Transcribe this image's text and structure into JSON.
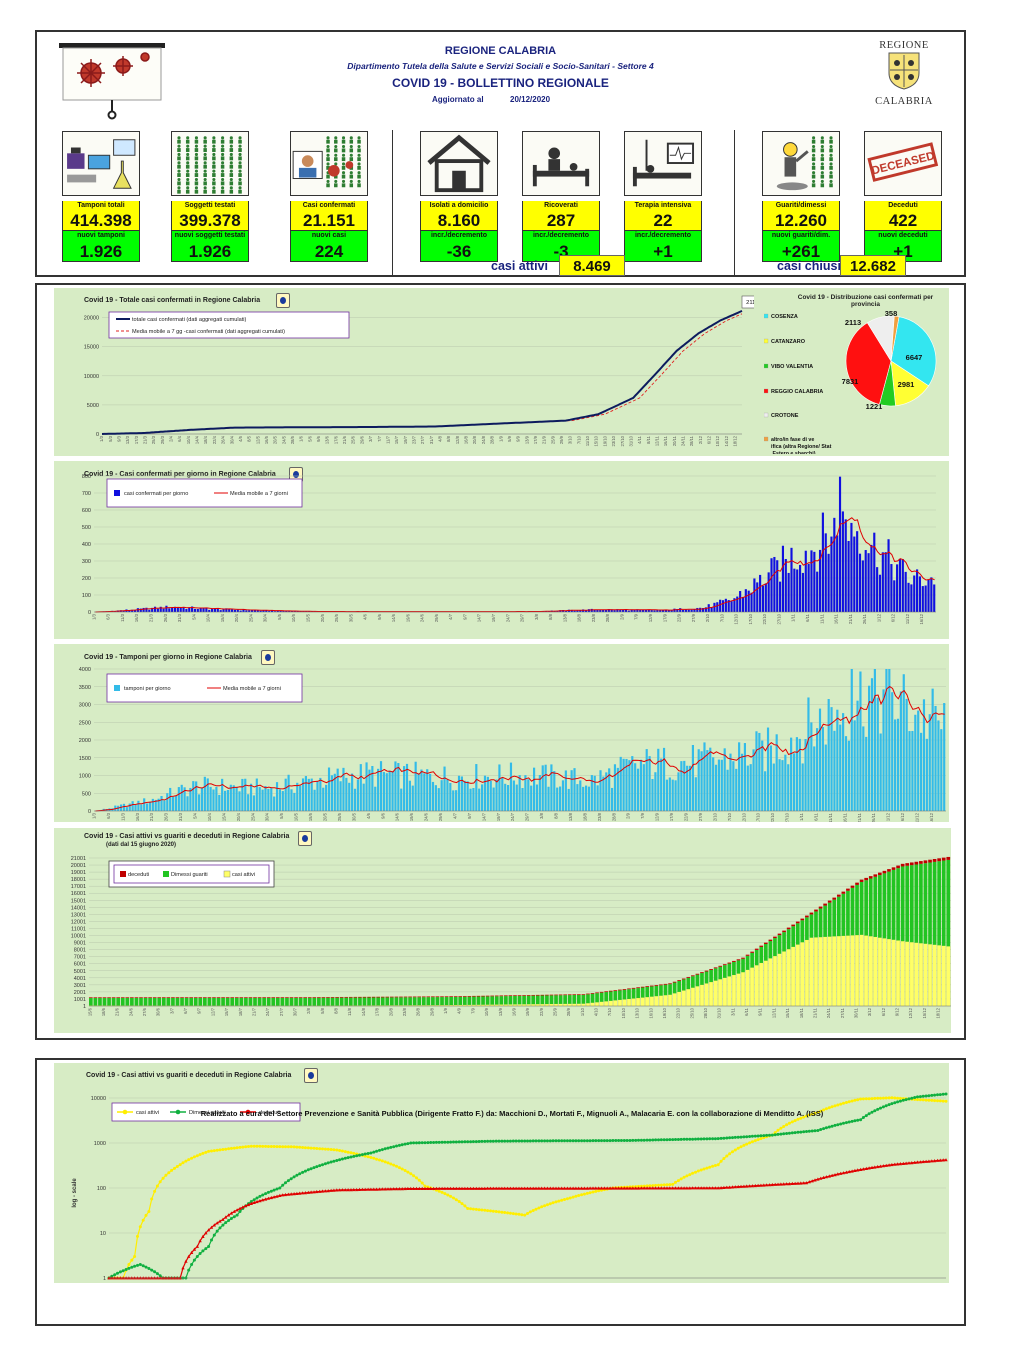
{
  "header": {
    "region": "REGIONE CALABRIA",
    "department": "Dipartimento Tutela della Salute e Servizi Sociali e Socio-Sanitari - Settore 4",
    "title": "COVID 19 - BOLLETTINO REGIONALE",
    "updated_label": "Aggiornato al",
    "updated_date": "20/12/2020",
    "coat_top": "REGIONE",
    "coat_bottom": "CALABRIA"
  },
  "kpis": [
    {
      "label": "Tamponi totali",
      "value": "414.398",
      "sub_label": "nuovi tamponi",
      "sub_value": "1.926",
      "icon": "lab-icon"
    },
    {
      "label": "Soggetti testati",
      "value": "399.378",
      "sub_label": "nuovi soggetti testati",
      "sub_value": "1.926",
      "icon": "people-grid-icon"
    },
    {
      "label": "Casi confermati",
      "value": "21.151",
      "sub_label": "nuovi casi",
      "sub_value": "224",
      "icon": "confirmed-people-icon"
    },
    {
      "label": "Isolati a domicilio",
      "value": "8.160",
      "sub_label": "incr./decremento",
      "sub_value": "-36",
      "icon": "house-icon"
    },
    {
      "label": "Ricoverati",
      "value": "287",
      "sub_label": "incr./decremento",
      "sub_value": "-3",
      "icon": "hospital-bed-icon"
    },
    {
      "label": "Terapia intensiva",
      "value": "22",
      "sub_label": "incr./decremento",
      "sub_value": "+1",
      "icon": "icu-bed-icon"
    },
    {
      "label": "Guariti/dimessi",
      "value": "12.260",
      "sub_label": "nuovi guariti/dim.",
      "sub_value": "+261",
      "icon": "recovered-person-icon"
    },
    {
      "label": "Deceduti",
      "value": "422",
      "sub_label": "nuovi deceduti",
      "sub_value": "+1",
      "icon": "deceased-stamp-icon"
    }
  ],
  "summary": {
    "active_label": "casi attivi",
    "active_value": "8.469",
    "closed_label": "casi chiusi",
    "closed_value": "12.682"
  },
  "stamp_text": "DECEASED",
  "footer": "Realizzato a cura del Settore Prevenzione e Sanità Pubblica (Dirigente Fratto F.) da:  Macchioni D., Mortati F., Mignuoli A., Malacaria E. con la collaborazione di Menditto A. (ISS)",
  "colors": {
    "panel": "#d7ecc5",
    "navy": "#0d1b5e",
    "blue": "#1010e0",
    "sky": "#33bbe8",
    "red": "#e00000",
    "green": "#22c422",
    "yellow": "#ffff66"
  },
  "chart_data": [
    {
      "id": "cumulative",
      "type": "line",
      "title": "Covid 19 - Totale casi confermati in Regione Calabria",
      "legend": [
        "totale casi confermati (dati aggregati cumulati)",
        "Media mobile a 7 gg -casi confermati (dati aggregati cumulati)"
      ],
      "annotation": "21151",
      "ylim": [
        0,
        22000
      ],
      "yticks": [
        0,
        5000,
        10000,
        15000,
        20000
      ],
      "x_start": "2020-03-01",
      "x_end": "2020-12-20",
      "points": [
        [
          "2020-03-01",
          0
        ],
        [
          "2020-03-20",
          170
        ],
        [
          "2020-04-10",
          700
        ],
        [
          "2020-05-01",
          1100
        ],
        [
          "2020-06-01",
          1160
        ],
        [
          "2020-07-01",
          1200
        ],
        [
          "2020-08-01",
          1290
        ],
        [
          "2020-08-31",
          1800
        ],
        [
          "2020-09-30",
          2300
        ],
        [
          "2020-10-15",
          3400
        ],
        [
          "2020-10-31",
          6200
        ],
        [
          "2020-11-10",
          10200
        ],
        [
          "2020-11-20",
          14300
        ],
        [
          "2020-11-30",
          17300
        ],
        [
          "2020-12-10",
          19500
        ],
        [
          "2020-12-20",
          21151
        ]
      ]
    },
    {
      "id": "provinces",
      "type": "pie",
      "title": "Covid 19 - Distribuzione casi confermati per provincia",
      "slices": [
        {
          "name": "COSENZA",
          "value": 6647,
          "color": "#33e6f0"
        },
        {
          "name": "CATANZARO",
          "value": 2981,
          "color": "#ffff33"
        },
        {
          "name": "VIBO VALENTIA",
          "value": 1221,
          "color": "#22cc22"
        },
        {
          "name": "REGGIO CALABRIA",
          "value": 7831,
          "color": "#ff1010"
        },
        {
          "name": "CROTONE",
          "value": 2113,
          "color": "#eeeeee"
        },
        {
          "name": "altro/in fase di verifica (altra Regione/ Stato Estero e sbarchi)",
          "value": 358,
          "color": "#f0a040"
        }
      ]
    },
    {
      "id": "daily_cases",
      "type": "bar",
      "title": "Covid 19 - Casi confermati per giorno in Regione Calabria",
      "legend": [
        "casi confermati per giorno",
        "Media mobile a 7 giorni"
      ],
      "ylim": [
        0,
        800
      ],
      "yticks": [
        0,
        100,
        200,
        300,
        400,
        500,
        600,
        700,
        800
      ],
      "x_start": "2020-03-01",
      "x_end": "2020-12-20",
      "profile": [
        [
          "2020-03-01",
          0
        ],
        [
          "2020-03-15",
          15
        ],
        [
          "2020-03-28",
          30
        ],
        [
          "2020-04-08",
          20
        ],
        [
          "2020-04-30",
          8
        ],
        [
          "2020-05-15",
          3
        ],
        [
          "2020-06-15",
          2
        ],
        [
          "2020-07-31",
          3
        ],
        [
          "2020-08-25",
          15
        ],
        [
          "2020-09-15",
          10
        ],
        [
          "2020-09-30",
          25
        ],
        [
          "2020-10-10",
          70
        ],
        [
          "2020-10-20",
          180
        ],
        [
          "2020-10-31",
          320
        ],
        [
          "2020-11-08",
          380
        ],
        [
          "2020-11-15",
          480
        ],
        [
          "2020-11-22",
          520
        ],
        [
          "2020-11-30",
          360
        ],
        [
          "2020-12-06",
          280
        ],
        [
          "2020-12-12",
          190
        ],
        [
          "2020-12-20",
          200
        ]
      ],
      "peak": [
        "2020-11-17",
        796
      ]
    },
    {
      "id": "daily_swabs",
      "type": "bar",
      "title": "Covid 19 - Tamponi per giorno in Regione Calabria",
      "legend": [
        "tamponi per giorno",
        "Media mobile a 7 giorni"
      ],
      "ylim": [
        0,
        4000
      ],
      "yticks": [
        0,
        500,
        1000,
        1500,
        2000,
        2500,
        3000,
        3500,
        4000
      ],
      "x_start": "2020-03-01",
      "x_end": "2020-12-20",
      "profile": [
        [
          "2020-03-01",
          0
        ],
        [
          "2020-03-20",
          300
        ],
        [
          "2020-04-05",
          700
        ],
        [
          "2020-04-30",
          650
        ],
        [
          "2020-05-20",
          900
        ],
        [
          "2020-06-05",
          1050
        ],
        [
          "2020-07-01",
          950
        ],
        [
          "2020-07-31",
          1000
        ],
        [
          "2020-08-20",
          850
        ],
        [
          "2020-09-05",
          1300
        ],
        [
          "2020-09-30",
          1400
        ],
        [
          "2020-10-20",
          1700
        ],
        [
          "2020-11-05",
          2400
        ],
        [
          "2020-11-15",
          2900
        ],
        [
          "2020-11-25",
          3400
        ],
        [
          "2020-12-05",
          3000
        ],
        [
          "2020-12-20",
          2400
        ]
      ],
      "peak": [
        "2020-11-18",
        4050
      ]
    },
    {
      "id": "stacked",
      "type": "bar",
      "title": "Covid 19 - Casi attivi vs guariti e deceduti in Regione Calabria",
      "subtitle": "(dati dal 15 giugno 2020)",
      "legend": [
        "deceduti",
        "Dimessi guariti",
        "casi attivi"
      ],
      "ylim": [
        0,
        21001
      ],
      "yticks": [
        1,
        1001,
        2001,
        3001,
        4001,
        5001,
        6001,
        7001,
        8001,
        9001,
        10001,
        11001,
        12001,
        13001,
        14001,
        15001,
        16001,
        17001,
        18001,
        19001,
        20001,
        21001
      ],
      "x_start": "2020-06-15",
      "x_end": "2020-12-20",
      "active": [
        [
          "2020-06-15",
          70
        ],
        [
          "2020-08-01",
          40
        ],
        [
          "2020-09-01",
          130
        ],
        [
          "2020-10-01",
          330
        ],
        [
          "2020-10-20",
          1600
        ],
        [
          "2020-11-05",
          4800
        ],
        [
          "2020-11-20",
          9700
        ],
        [
          "2020-12-01",
          10100
        ],
        [
          "2020-12-10",
          9200
        ],
        [
          "2020-12-20",
          8469
        ]
      ],
      "recovered": [
        [
          "2020-06-15",
          1060
        ],
        [
          "2020-08-01",
          1110
        ],
        [
          "2020-09-01",
          1140
        ],
        [
          "2020-10-01",
          1250
        ],
        [
          "2020-10-20",
          1500
        ],
        [
          "2020-11-05",
          1900
        ],
        [
          "2020-11-20",
          3300
        ],
        [
          "2020-12-01",
          7500
        ],
        [
          "2020-12-10",
          10600
        ],
        [
          "2020-12-20",
          12260
        ]
      ],
      "deaths": [
        [
          "2020-06-15",
          97
        ],
        [
          "2020-10-01",
          100
        ],
        [
          "2020-11-01",
          130
        ],
        [
          "2020-12-01",
          330
        ],
        [
          "2020-12-20",
          422
        ]
      ]
    },
    {
      "id": "log",
      "type": "line",
      "title": "Covid 19 - Casi attivi vs guariti e deceduti in Regione Calabria",
      "legend": [
        "casi attivi",
        "Dimessi guariti",
        "deceduti"
      ],
      "ylabel": "log - scale",
      "yticks": [
        1,
        10,
        100,
        1000,
        10000
      ],
      "x_start": "2020-03-01",
      "x_end": "2020-12-20",
      "active": [
        [
          "2020-03-01",
          1
        ],
        [
          "2020-03-06",
          1
        ],
        [
          "2020-03-10",
          3
        ],
        [
          "2020-03-15",
          30
        ],
        [
          "2020-03-25",
          300
        ],
        [
          "2020-04-05",
          650
        ],
        [
          "2020-04-20",
          850
        ],
        [
          "2020-05-05",
          820
        ],
        [
          "2020-05-20",
          700
        ],
        [
          "2020-06-05",
          400
        ],
        [
          "2020-06-20",
          110
        ],
        [
          "2020-07-05",
          35
        ],
        [
          "2020-07-25",
          25
        ],
        [
          "2020-08-10",
          60
        ],
        [
          "2020-08-25",
          100
        ],
        [
          "2020-09-15",
          120
        ],
        [
          "2020-10-01",
          330
        ],
        [
          "2020-10-20",
          1500
        ],
        [
          "2020-11-05",
          4800
        ],
        [
          "2020-11-20",
          9500
        ],
        [
          "2020-12-01",
          10100
        ],
        [
          "2020-12-10",
          9200
        ],
        [
          "2020-12-20",
          8469
        ]
      ],
      "recovered": [
        [
          "2020-03-01",
          1
        ],
        [
          "2020-03-12",
          2
        ],
        [
          "2020-03-20",
          1
        ],
        [
          "2020-03-28",
          1
        ],
        [
          "2020-04-05",
          5
        ],
        [
          "2020-04-15",
          25
        ],
        [
          "2020-04-30",
          100
        ],
        [
          "2020-05-15",
          330
        ],
        [
          "2020-06-01",
          600
        ],
        [
          "2020-06-15",
          1000
        ],
        [
          "2020-07-15",
          1100
        ],
        [
          "2020-09-01",
          1140
        ],
        [
          "2020-10-01",
          1250
        ],
        [
          "2020-10-20",
          1500
        ],
        [
          "2020-11-05",
          1900
        ],
        [
          "2020-11-20",
          3300
        ],
        [
          "2020-12-01",
          7500
        ],
        [
          "2020-12-10",
          10600
        ],
        [
          "2020-12-20",
          12260
        ]
      ],
      "deaths": [
        [
          "2020-03-01",
          1
        ],
        [
          "2020-03-26",
          1
        ],
        [
          "2020-04-01",
          5
        ],
        [
          "2020-04-10",
          20
        ],
        [
          "2020-04-20",
          45
        ],
        [
          "2020-05-01",
          70
        ],
        [
          "2020-05-20",
          90
        ],
        [
          "2020-06-15",
          97
        ],
        [
          "2020-10-01",
          100
        ],
        [
          "2020-11-01",
          130
        ],
        [
          "2020-12-01",
          330
        ],
        [
          "2020-12-20",
          422
        ]
      ]
    }
  ]
}
